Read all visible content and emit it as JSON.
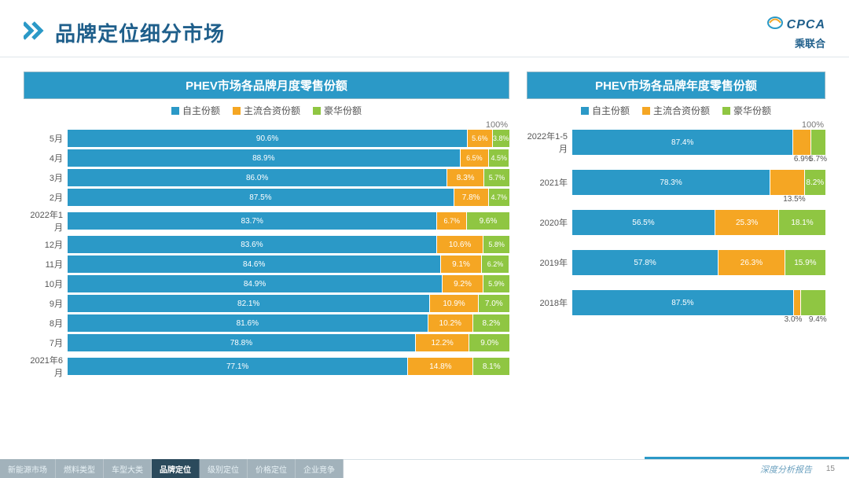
{
  "page_title": "品牌定位细分市场",
  "logo": {
    "top": "CPCA",
    "bottom": "乘联合"
  },
  "colors": {
    "domestic": "#2b99c7",
    "jv": "#f5a623",
    "luxury": "#8fc642",
    "header_bg": "#2b99c7",
    "border": "#dfe6ea"
  },
  "legend": {
    "a": "自主份额",
    "b": "主流合资份额",
    "c": "豪华份额"
  },
  "chart_left": {
    "title": "PHEV市场各品牌月度零售份额",
    "hundred_label": "100%",
    "bars": [
      {
        "cat": "5月",
        "v": [
          90.6,
          5.6,
          3.8
        ]
      },
      {
        "cat": "4月",
        "v": [
          88.9,
          6.5,
          4.5
        ]
      },
      {
        "cat": "3月",
        "v": [
          86.0,
          8.3,
          5.7
        ]
      },
      {
        "cat": "2月",
        "v": [
          87.5,
          7.8,
          4.7
        ]
      },
      {
        "cat": "2022年1月",
        "v": [
          83.7,
          6.7,
          9.6
        ]
      },
      {
        "cat": "12月",
        "v": [
          83.6,
          10.6,
          5.8
        ]
      },
      {
        "cat": "11月",
        "v": [
          84.6,
          9.1,
          6.2
        ]
      },
      {
        "cat": "10月",
        "v": [
          84.9,
          9.2,
          5.9
        ]
      },
      {
        "cat": "9月",
        "v": [
          82.1,
          10.9,
          7.0
        ]
      },
      {
        "cat": "8月",
        "v": [
          81.6,
          10.2,
          8.2
        ]
      },
      {
        "cat": "7月",
        "v": [
          78.8,
          12.2,
          9.0
        ]
      },
      {
        "cat": "2021年6月",
        "v": [
          77.1,
          14.8,
          8.1
        ]
      }
    ]
  },
  "chart_right": {
    "title": "PHEV市场各品牌年度零售份额",
    "hundred_label": "100%",
    "bars": [
      {
        "cat": "2022年1-5月",
        "v": [
          87.4,
          6.9,
          5.7
        ],
        "out": [
          "b",
          "c"
        ]
      },
      {
        "cat": "2021年",
        "v": [
          78.3,
          13.5,
          8.2
        ],
        "out": [
          "b"
        ]
      },
      {
        "cat": "2020年",
        "v": [
          56.5,
          25.3,
          18.1
        ]
      },
      {
        "cat": "2019年",
        "v": [
          57.8,
          26.3,
          15.9
        ]
      },
      {
        "cat": "2018年",
        "v": [
          87.5,
          3.0,
          9.4
        ],
        "out": [
          "b",
          "c"
        ]
      }
    ]
  },
  "footer": {
    "tabs": [
      "新能源市场",
      "燃料类型",
      "车型大类",
      "品牌定位",
      "级别定位",
      "价格定位",
      "企业竞争"
    ],
    "active_tab_index": 3,
    "report_label": "深度分析报告",
    "page_number": "15"
  }
}
